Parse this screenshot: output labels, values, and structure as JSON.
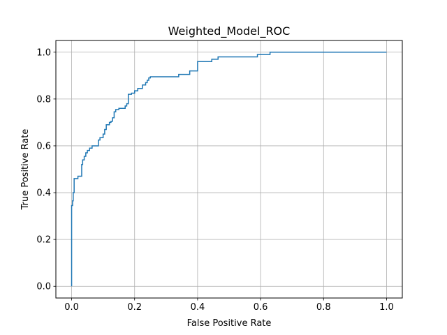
{
  "chart_data": {
    "type": "line",
    "title": "Weighted_Model_ROC",
    "xlabel": "False Positive Rate",
    "ylabel": "True Positive Rate",
    "xlim": [
      -0.05,
      1.05
    ],
    "ylim": [
      -0.05,
      1.05
    ],
    "xticks": [
      0.0,
      0.2,
      0.4,
      0.6,
      0.8,
      1.0
    ],
    "yticks": [
      0.0,
      0.2,
      0.4,
      0.6,
      0.8,
      1.0
    ],
    "xtick_labels": [
      "0.0",
      "0.2",
      "0.4",
      "0.6",
      "0.8",
      "1.0"
    ],
    "ytick_labels": [
      "0.0",
      "0.2",
      "0.4",
      "0.6",
      "0.8",
      "1.0"
    ],
    "grid": true,
    "line_color": "#1f77b4",
    "series": [
      {
        "x": [
          0.0,
          0.0,
          0.003,
          0.003,
          0.005,
          0.005,
          0.008,
          0.008,
          0.02,
          0.02,
          0.032,
          0.032,
          0.035,
          0.035,
          0.04,
          0.04,
          0.045,
          0.045,
          0.05,
          0.05,
          0.057,
          0.057,
          0.065,
          0.065,
          0.085,
          0.085,
          0.09,
          0.09,
          0.1,
          0.1,
          0.105,
          0.105,
          0.11,
          0.11,
          0.12,
          0.12,
          0.125,
          0.125,
          0.13,
          0.13,
          0.135,
          0.135,
          0.14,
          0.14,
          0.15,
          0.15,
          0.17,
          0.17,
          0.175,
          0.175,
          0.18,
          0.18,
          0.19,
          0.19,
          0.2,
          0.2,
          0.21,
          0.21,
          0.225,
          0.225,
          0.235,
          0.235,
          0.24,
          0.24,
          0.245,
          0.245,
          0.25,
          0.25,
          0.34,
          0.34,
          0.375,
          0.375,
          0.4,
          0.4,
          0.445,
          0.445,
          0.465,
          0.465,
          0.59,
          0.59,
          0.63,
          0.63,
          1.0
        ],
        "y": [
          0.0,
          0.345,
          0.345,
          0.365,
          0.365,
          0.4,
          0.4,
          0.46,
          0.46,
          0.47,
          0.47,
          0.52,
          0.52,
          0.54,
          0.54,
          0.555,
          0.555,
          0.57,
          0.57,
          0.58,
          0.58,
          0.59,
          0.59,
          0.6,
          0.6,
          0.625,
          0.625,
          0.635,
          0.635,
          0.65,
          0.65,
          0.67,
          0.67,
          0.69,
          0.69,
          0.7,
          0.7,
          0.705,
          0.705,
          0.72,
          0.72,
          0.745,
          0.745,
          0.755,
          0.755,
          0.76,
          0.76,
          0.77,
          0.77,
          0.78,
          0.78,
          0.82,
          0.82,
          0.825,
          0.825,
          0.835,
          0.835,
          0.845,
          0.845,
          0.86,
          0.86,
          0.87,
          0.87,
          0.88,
          0.88,
          0.89,
          0.89,
          0.895,
          0.895,
          0.905,
          0.905,
          0.92,
          0.92,
          0.96,
          0.96,
          0.97,
          0.97,
          0.98,
          0.98,
          0.99,
          0.99,
          1.0,
          1.0
        ]
      }
    ]
  }
}
